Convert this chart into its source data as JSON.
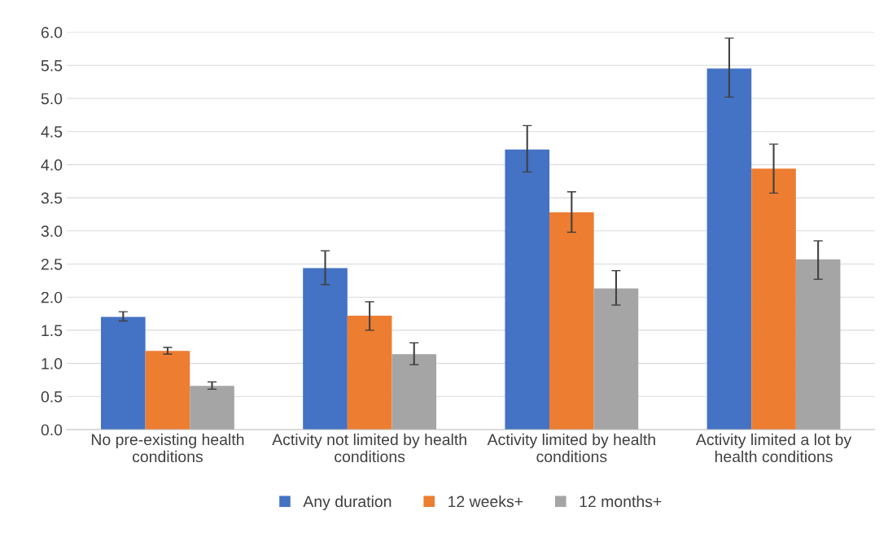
{
  "chart_data": {
    "type": "bar",
    "categories": [
      "No pre-existing health conditions",
      "Activity not limited by health conditions",
      "Activity limited by health conditions",
      "Activity limited a lot by health conditions"
    ],
    "series": [
      {
        "name": "Any duration",
        "color": "#4472c4",
        "values": [
          1.7,
          2.44,
          4.23,
          5.45
        ],
        "errors": [
          [
            1.64,
            1.78
          ],
          [
            2.19,
            2.7
          ],
          [
            3.89,
            4.59
          ],
          [
            5.02,
            5.91
          ]
        ]
      },
      {
        "name": "12 weeks+",
        "color": "#ed7d31",
        "values": [
          1.19,
          1.72,
          3.28,
          3.94
        ],
        "errors": [
          [
            1.14,
            1.24
          ],
          [
            1.5,
            1.93
          ],
          [
            2.98,
            3.59
          ],
          [
            3.57,
            4.31
          ]
        ]
      },
      {
        "name": "12 months+",
        "color": "#a5a5a5",
        "values": [
          0.66,
          1.14,
          2.13,
          2.57
        ],
        "errors": [
          [
            0.61,
            0.72
          ],
          [
            0.98,
            1.31
          ],
          [
            1.88,
            2.4
          ],
          [
            2.27,
            2.85
          ]
        ]
      }
    ],
    "ylim": [
      0,
      6
    ],
    "yticks": [
      {
        "value": 0,
        "label": "0.0"
      },
      {
        "value": 0.5,
        "label": "0.5"
      },
      {
        "value": 1,
        "label": "1.0"
      },
      {
        "value": 1.5,
        "label": "1.5"
      },
      {
        "value": 2,
        "label": "2.0"
      },
      {
        "value": 2.5,
        "label": "2.5"
      },
      {
        "value": 3,
        "label": "3.0"
      },
      {
        "value": 3.5,
        "label": "3.5"
      },
      {
        "value": 4,
        "label": "4.0"
      },
      {
        "value": 4.5,
        "label": "4.5"
      },
      {
        "value": 5,
        "label": "5.0"
      },
      {
        "value": 5.5,
        "label": "5.5"
      },
      {
        "value": 6,
        "label": "6.0"
      }
    ],
    "grid": "y",
    "legend": "bottom"
  }
}
